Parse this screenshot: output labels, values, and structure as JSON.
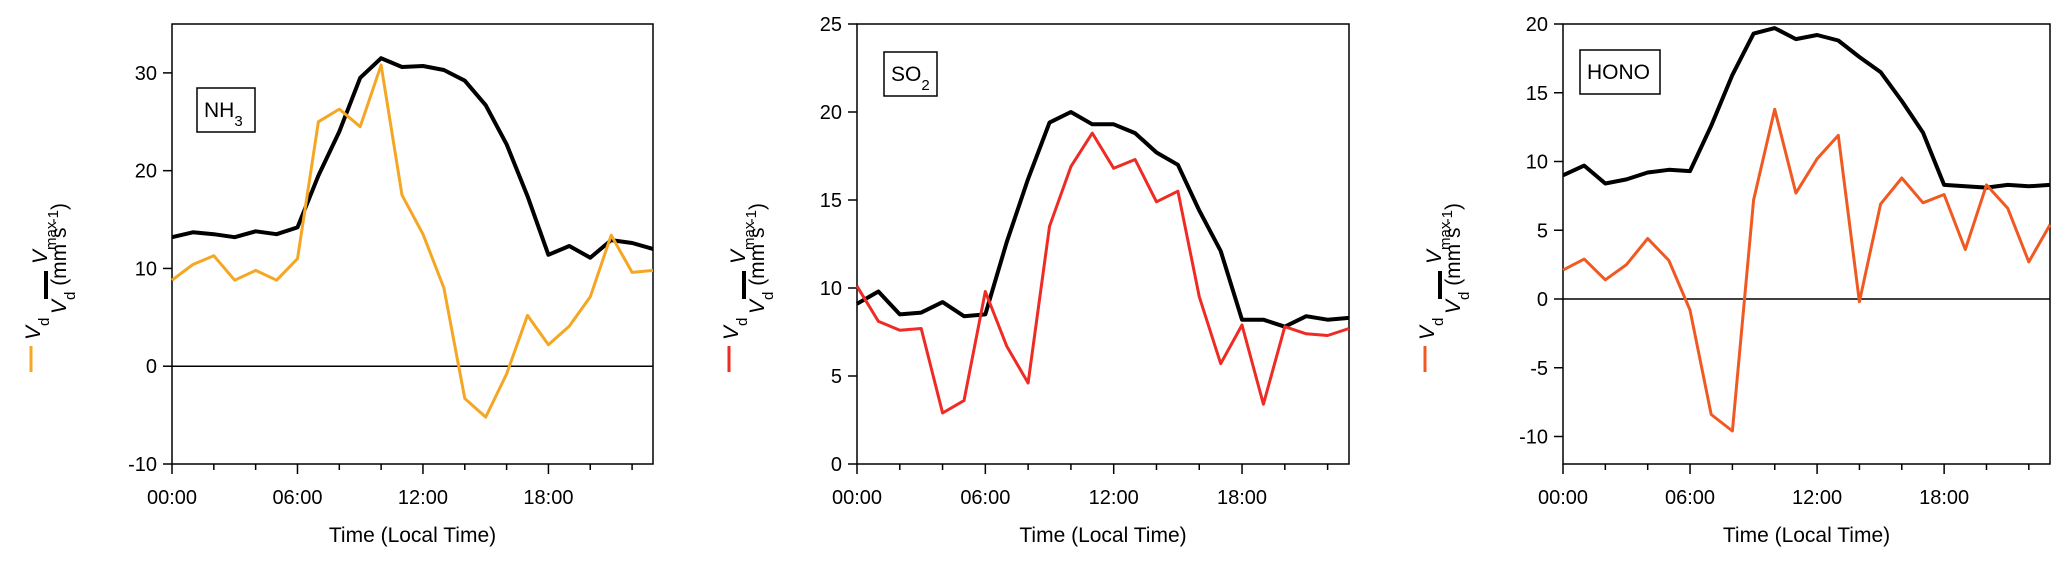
{
  "chart_data": [
    {
      "type": "line",
      "panel_label": "NH",
      "panel_label_sub": "3",
      "xlabel": "Time (Local Time)",
      "x_tick_labels": [
        "00:00",
        "06:00",
        "12:00",
        "18:00"
      ],
      "x_ticks": [
        0,
        6,
        12,
        18
      ],
      "xlim": [
        0,
        23
      ],
      "ylim": [
        -10,
        35
      ],
      "y_ticks": [
        -10,
        0,
        10,
        20,
        30
      ],
      "y_tick_labels": [
        "-10",
        "0",
        "10",
        "20",
        "30"
      ],
      "ylabel": {
        "vd": "V",
        "vd_sub": "d",
        "vmax": "V",
        "vmax_sub": "max",
        "units": "(mm s",
        "units_sup": "-1",
        "units_close": ")"
      },
      "zero_line": true,
      "x": [
        0,
        1,
        2,
        3,
        4,
        5,
        6,
        7,
        8,
        9,
        10,
        11,
        12,
        13,
        14,
        15,
        16,
        17,
        18,
        19,
        20,
        21,
        22,
        23
      ],
      "series": [
        {
          "key": "vmax",
          "color": "#000000",
          "values": [
            13.2,
            13.7,
            13.5,
            13.2,
            13.8,
            13.5,
            14.2,
            19.5,
            24.0,
            29.5,
            31.5,
            30.6,
            30.7,
            30.3,
            29.2,
            26.7,
            22.7,
            17.4,
            11.4,
            12.3,
            11.1,
            12.9,
            12.6,
            12.0
          ]
        },
        {
          "key": "vd",
          "color": "#F5A623",
          "values": [
            8.8,
            10.4,
            11.3,
            8.8,
            9.8,
            8.8,
            11.0,
            25.0,
            26.3,
            24.5,
            30.8,
            17.5,
            13.5,
            8.0,
            -3.3,
            -5.2,
            -0.8,
            5.2,
            2.2,
            4.1,
            7.1,
            13.4,
            9.6,
            9.8
          ]
        }
      ]
    },
    {
      "type": "line",
      "panel_label": "SO",
      "panel_label_sub": "2",
      "xlabel": "Time (Local Time)",
      "x_tick_labels": [
        "00:00",
        "06:00",
        "12:00",
        "18:00"
      ],
      "x_ticks": [
        0,
        6,
        12,
        18
      ],
      "xlim": [
        0,
        23
      ],
      "ylim": [
        0,
        25
      ],
      "y_ticks": [
        0,
        5,
        10,
        15,
        20,
        25
      ],
      "y_tick_labels": [
        "0",
        "5",
        "10",
        "15",
        "20",
        "25"
      ],
      "ylabel": {
        "vd": "V",
        "vd_sub": "d",
        "vmax": "V",
        "vmax_sub": "max",
        "units": "(mm s",
        "units_sup": "-1",
        "units_close": ")"
      },
      "zero_line": false,
      "x": [
        0,
        1,
        2,
        3,
        4,
        5,
        6,
        7,
        8,
        9,
        10,
        11,
        12,
        13,
        14,
        15,
        16,
        17,
        18,
        19,
        20,
        21,
        22,
        23
      ],
      "series": [
        {
          "key": "vmax",
          "color": "#000000",
          "values": [
            9.1,
            9.8,
            8.5,
            8.6,
            9.2,
            8.4,
            8.5,
            12.6,
            16.2,
            19.4,
            20.0,
            19.3,
            19.3,
            18.8,
            17.7,
            17.0,
            14.4,
            12.1,
            8.2,
            8.2,
            7.8,
            8.4,
            8.2,
            8.3
          ]
        },
        {
          "key": "vd",
          "color": "#EE2B24",
          "values": [
            10.1,
            8.1,
            7.6,
            7.7,
            2.9,
            3.6,
            9.8,
            6.7,
            4.6,
            13.5,
            16.9,
            18.8,
            16.8,
            17.3,
            14.9,
            15.5,
            9.5,
            5.7,
            7.9,
            3.4,
            7.8,
            7.4,
            7.3,
            7.7
          ]
        }
      ]
    },
    {
      "type": "line",
      "panel_label": "HONO",
      "panel_label_sub": "",
      "xlabel": "Time (Local Time)",
      "x_tick_labels": [
        "00:00",
        "06:00",
        "12:00",
        "18:00"
      ],
      "x_ticks": [
        0,
        6,
        12,
        18
      ],
      "xlim": [
        0,
        23
      ],
      "ylim": [
        -12,
        20
      ],
      "y_ticks": [
        -10,
        -5,
        0,
        5,
        10,
        15,
        20
      ],
      "y_tick_labels": [
        "-10",
        "-5",
        "0",
        "5",
        "10",
        "15",
        "20"
      ],
      "ylabel": {
        "vd": "V",
        "vd_sub": "d",
        "vmax": "V",
        "vmax_sub": "max",
        "units": "(mm s",
        "units_sup": "-1",
        "units_close": ")"
      },
      "zero_line": true,
      "x": [
        0,
        1,
        2,
        3,
        4,
        5,
        6,
        7,
        8,
        9,
        10,
        11,
        12,
        13,
        14,
        15,
        16,
        17,
        18,
        19,
        20,
        21,
        22,
        23
      ],
      "series": [
        {
          "key": "vmax",
          "color": "#000000",
          "values": [
            9.0,
            9.7,
            8.4,
            8.7,
            9.2,
            9.4,
            9.3,
            12.6,
            16.3,
            19.3,
            19.7,
            18.9,
            19.2,
            18.8,
            17.6,
            16.5,
            14.4,
            12.1,
            8.3,
            8.2,
            8.1,
            8.3,
            8.2,
            8.3
          ]
        },
        {
          "key": "vd",
          "color": "#F05A22",
          "values": [
            2.1,
            2.9,
            1.4,
            2.5,
            4.4,
            2.8,
            -0.8,
            -8.4,
            -9.6,
            7.2,
            13.8,
            7.7,
            10.2,
            11.9,
            -0.2,
            6.9,
            8.8,
            7.0,
            7.6,
            3.6,
            8.3,
            6.6,
            2.7,
            5.4
          ]
        }
      ]
    }
  ]
}
